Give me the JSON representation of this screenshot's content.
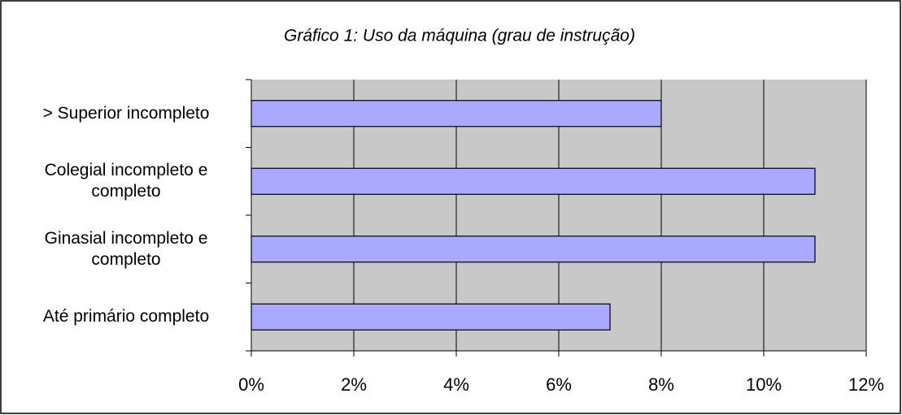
{
  "chart_data": {
    "type": "bar",
    "orientation": "horizontal",
    "title": "Gráfico 1: Uso da máquina (grau de instrução)",
    "categories": [
      "> Superior incompleto",
      "Colegial incompleto e completo",
      "Ginasial incompleto e completo",
      "Até primário completo"
    ],
    "values": [
      8,
      11,
      11,
      7
    ],
    "color": "#a9a9ff",
    "xlim": [
      0,
      12
    ],
    "xticks": [
      {
        "value": 0,
        "label": "0%"
      },
      {
        "value": 2,
        "label": "2%"
      },
      {
        "value": 4,
        "label": "4%"
      },
      {
        "value": 6,
        "label": "6%"
      },
      {
        "value": 8,
        "label": "8%"
      },
      {
        "value": 10,
        "label": "10%"
      },
      {
        "value": 12,
        "label": "12%"
      }
    ],
    "grid": true
  }
}
